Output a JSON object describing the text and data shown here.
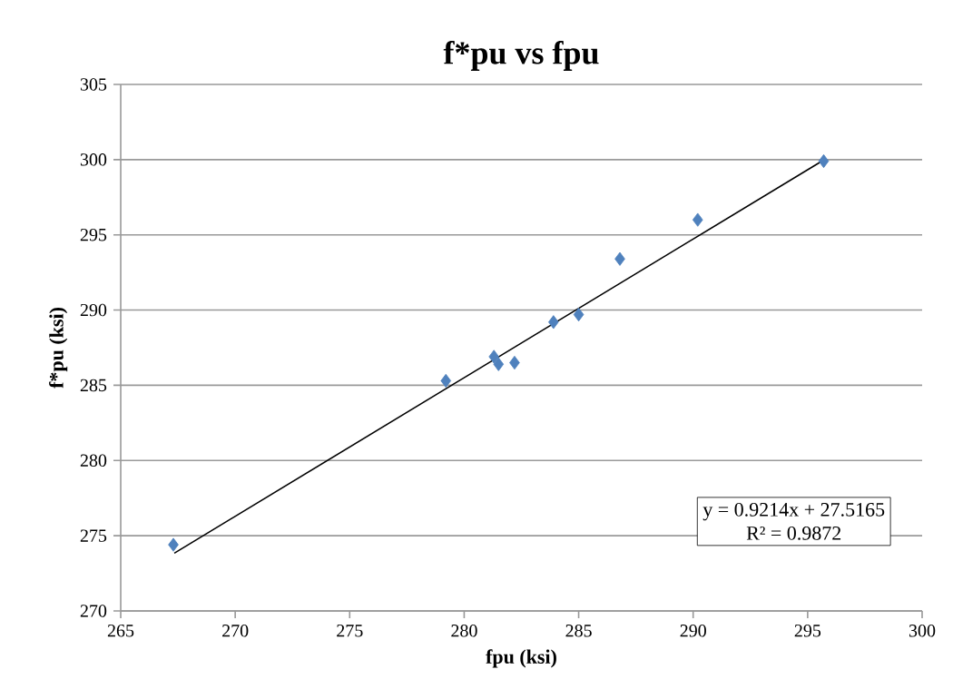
{
  "chart_data": {
    "type": "scatter",
    "title": "f*pu vs fpu",
    "xlabel": "fpu (ksi)",
    "ylabel": "f*pu (ksi)",
    "xlim": [
      265,
      300
    ],
    "xticks": [
      265,
      270,
      275,
      280,
      285,
      290,
      295,
      300
    ],
    "ylim": [
      270,
      305
    ],
    "yticks": [
      270,
      275,
      280,
      285,
      290,
      295,
      300,
      305
    ],
    "grid": "y",
    "marker": "diamond",
    "series": [
      {
        "color": "#4f81bd",
        "x": [
          267.3,
          279.2,
          281.3,
          281.5,
          282.2,
          283.9,
          285.0,
          286.8,
          290.2,
          295.7
        ],
        "values": [
          274.4,
          285.3,
          286.9,
          286.4,
          286.5,
          289.2,
          289.7,
          293.4,
          296.0,
          299.9
        ]
      },
      {
        "type": "line",
        "color": "#000000",
        "marker": "none",
        "x": [
          267.34,
          295.72
        ],
        "values": [
          273.84,
          299.99
        ]
      }
    ],
    "annotations": [
      "y = 0.9214x + 27.5165",
      "R² = 0.9872"
    ]
  }
}
